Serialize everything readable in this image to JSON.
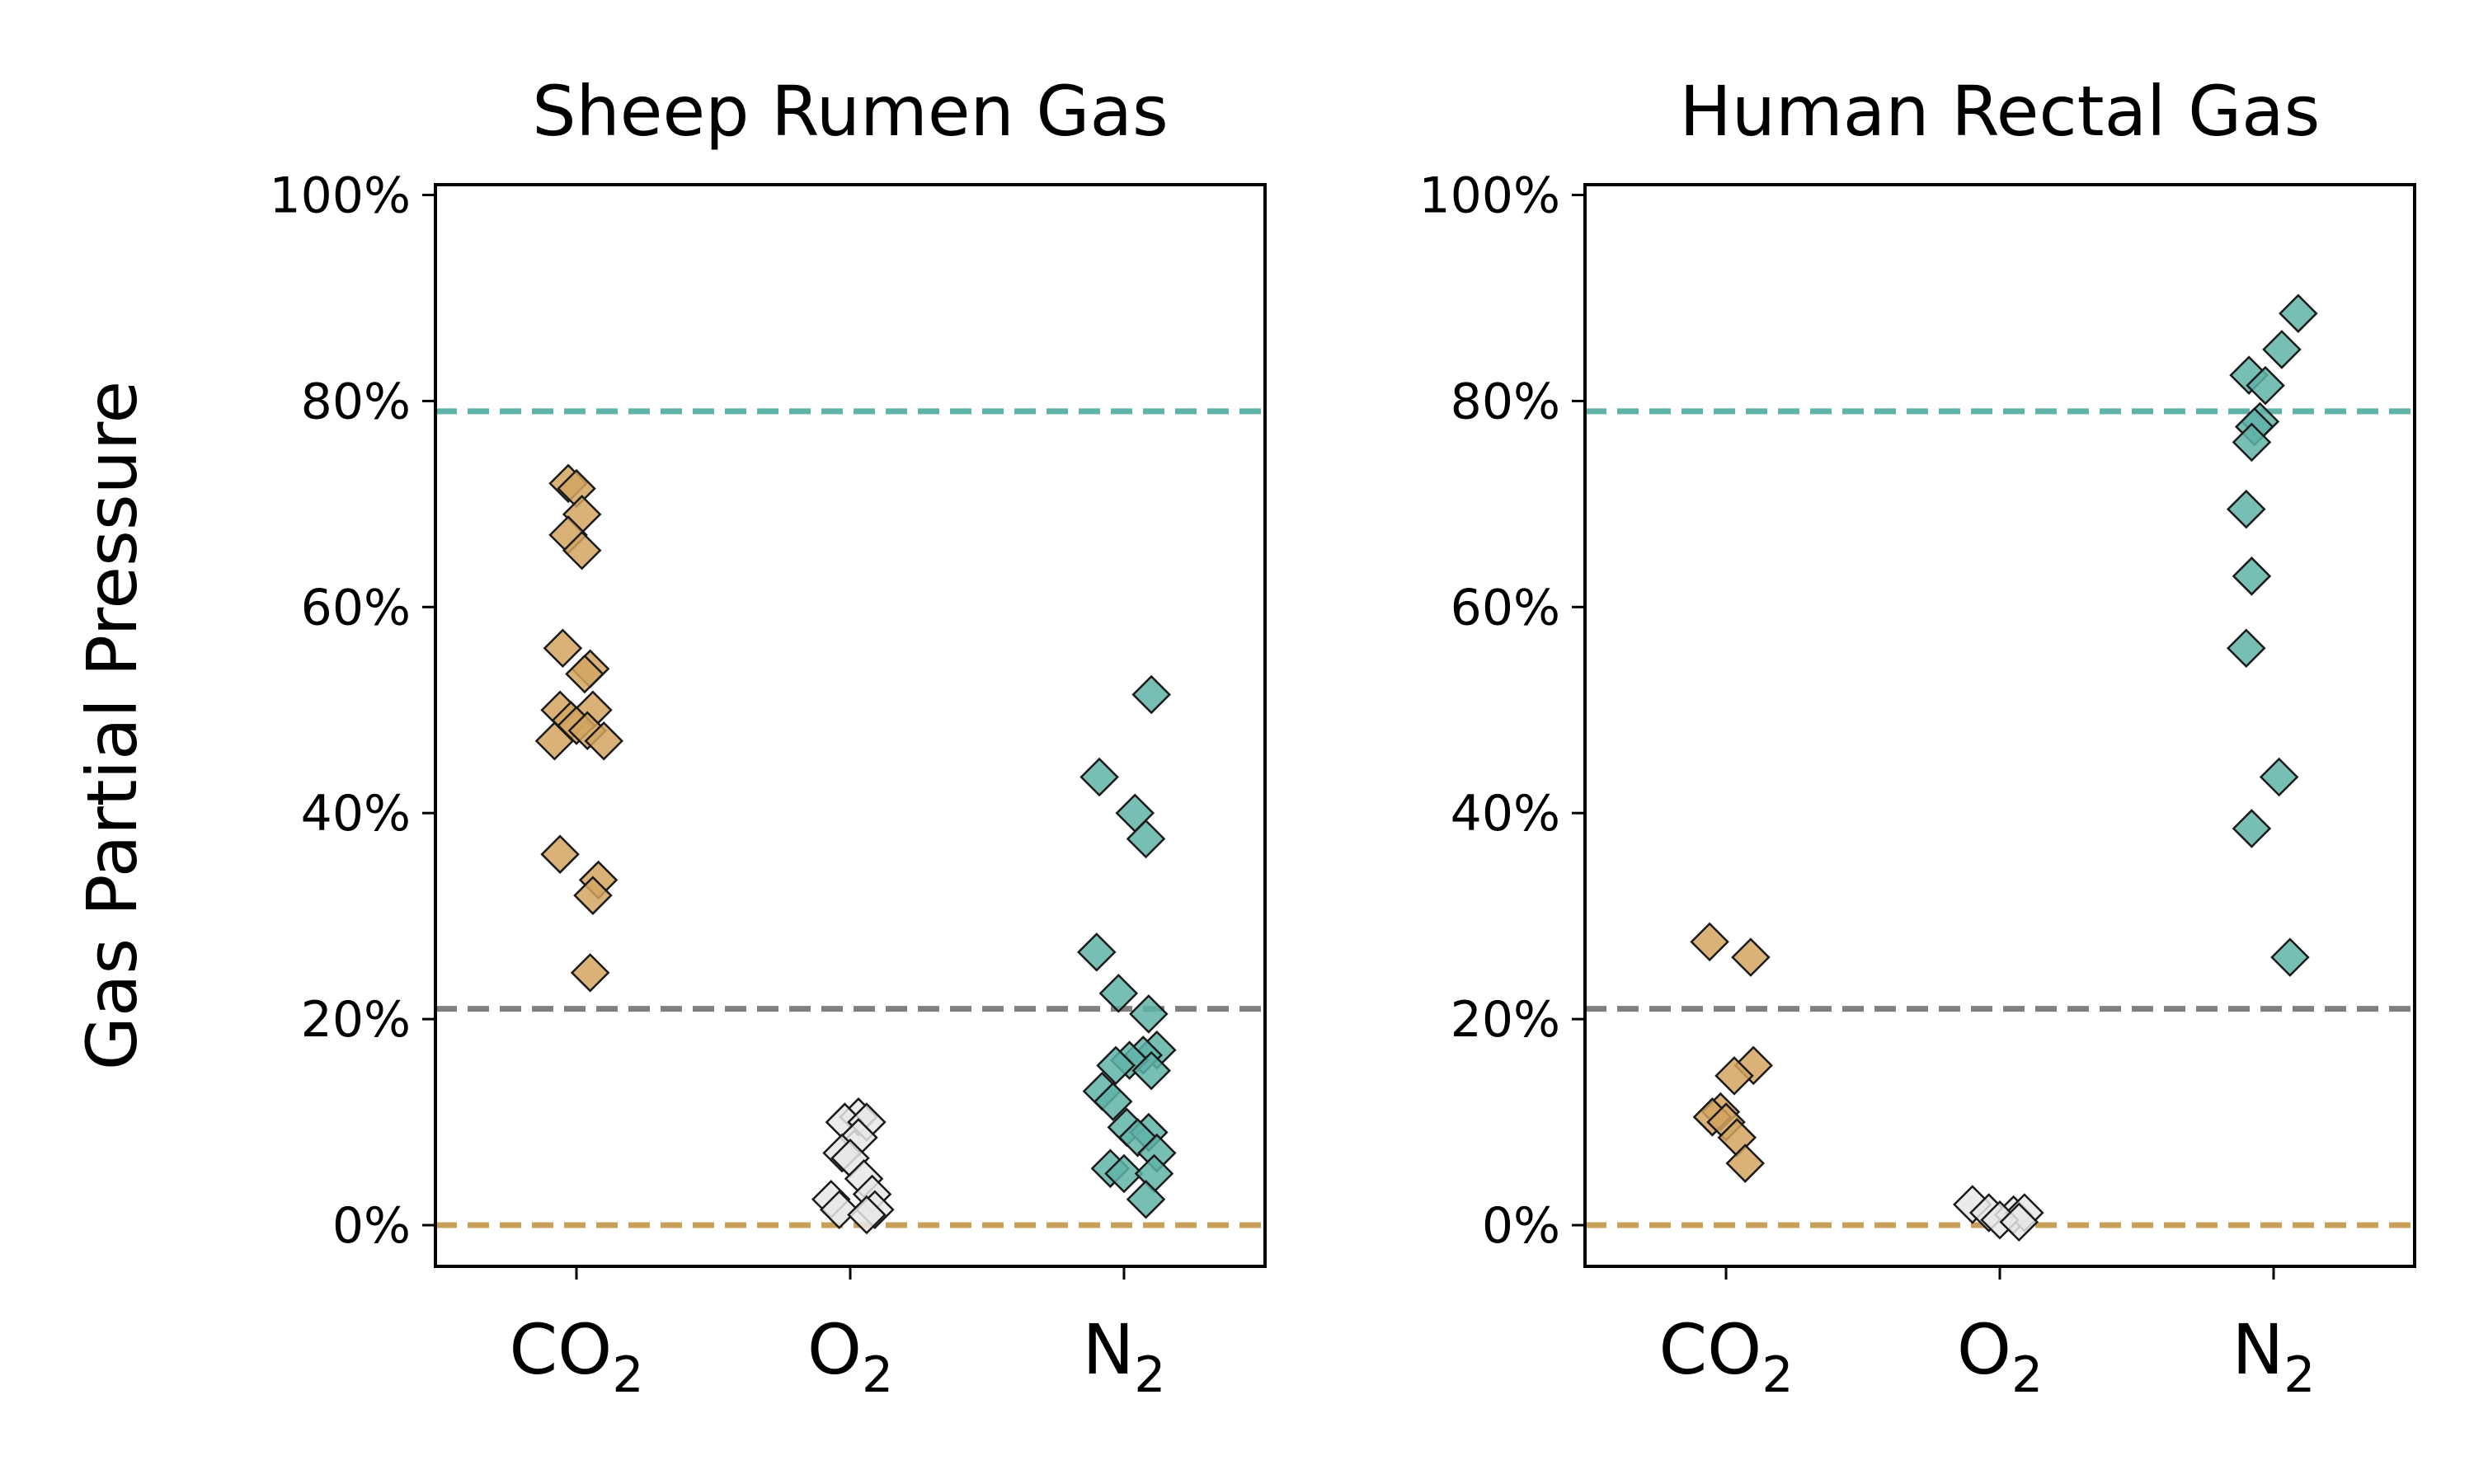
{
  "figure": {
    "ylabel": "Gas Partial Pressure"
  },
  "chart_data": [
    {
      "type": "scatter",
      "title": "Sheep Rumen Gas",
      "xlabel": "",
      "ylabel": "Gas Partial Pressure",
      "ylim": [
        -0.04,
        1.01
      ],
      "yticks": [
        0,
        0.2,
        0.4,
        0.6,
        0.8,
        1.0
      ],
      "ytick_labels": [
        "0%",
        "20%",
        "40%",
        "60%",
        "80%",
        "100%"
      ],
      "categories": [
        {
          "base": "CO",
          "sub": "2"
        },
        {
          "base": "O",
          "sub": "2"
        },
        {
          "base": "N",
          "sub": "2"
        }
      ],
      "reference_lines": [
        {
          "y": 0.79,
          "color": "#5fb3a8"
        },
        {
          "y": 0.21,
          "color": "#808080"
        },
        {
          "y": 0.0,
          "color": "#c8a05a"
        }
      ],
      "series": [
        {
          "color": "#d4a460",
          "category": 0,
          "points": [
            {
              "dx": -0.03,
              "y": 0.72
            },
            {
              "dx": 0.0,
              "y": 0.715
            },
            {
              "dx": 0.02,
              "y": 0.69
            },
            {
              "dx": -0.03,
              "y": 0.67
            },
            {
              "dx": 0.02,
              "y": 0.655
            },
            {
              "dx": -0.05,
              "y": 0.56
            },
            {
              "dx": 0.05,
              "y": 0.54
            },
            {
              "dx": 0.03,
              "y": 0.535
            },
            {
              "dx": -0.06,
              "y": 0.5
            },
            {
              "dx": 0.06,
              "y": 0.5
            },
            {
              "dx": -0.02,
              "y": 0.49
            },
            {
              "dx": 0.0,
              "y": 0.485
            },
            {
              "dx": 0.04,
              "y": 0.48
            },
            {
              "dx": -0.08,
              "y": 0.47
            },
            {
              "dx": 0.1,
              "y": 0.47
            },
            {
              "dx": -0.06,
              "y": 0.36
            },
            {
              "dx": 0.08,
              "y": 0.335
            },
            {
              "dx": 0.06,
              "y": 0.32
            },
            {
              "dx": 0.05,
              "y": 0.245
            }
          ]
        },
        {
          "color": "#e8e8e8",
          "category": 1,
          "points": [
            {
              "dx": 0.03,
              "y": 0.105
            },
            {
              "dx": -0.02,
              "y": 0.1
            },
            {
              "dx": 0.06,
              "y": 0.1
            },
            {
              "dx": 0.03,
              "y": 0.085
            },
            {
              "dx": -0.03,
              "y": 0.07
            },
            {
              "dx": 0.0,
              "y": 0.065
            },
            {
              "dx": 0.05,
              "y": 0.045
            },
            {
              "dx": 0.08,
              "y": 0.03
            },
            {
              "dx": -0.07,
              "y": 0.025
            },
            {
              "dx": -0.04,
              "y": 0.015
            },
            {
              "dx": 0.09,
              "y": 0.015
            },
            {
              "dx": 0.06,
              "y": 0.01
            }
          ]
        },
        {
          "color": "#5fb3a8",
          "category": 2,
          "points": [
            {
              "dx": 0.1,
              "y": 0.515
            },
            {
              "dx": -0.09,
              "y": 0.435
            },
            {
              "dx": 0.04,
              "y": 0.4
            },
            {
              "dx": 0.08,
              "y": 0.375
            },
            {
              "dx": -0.1,
              "y": 0.265
            },
            {
              "dx": -0.02,
              "y": 0.225
            },
            {
              "dx": 0.09,
              "y": 0.205
            },
            {
              "dx": 0.12,
              "y": 0.17
            },
            {
              "dx": 0.07,
              "y": 0.165
            },
            {
              "dx": 0.02,
              "y": 0.16
            },
            {
              "dx": -0.03,
              "y": 0.155
            },
            {
              "dx": 0.1,
              "y": 0.15
            },
            {
              "dx": -0.08,
              "y": 0.13
            },
            {
              "dx": -0.04,
              "y": 0.12
            },
            {
              "dx": 0.01,
              "y": 0.095
            },
            {
              "dx": 0.09,
              "y": 0.09
            },
            {
              "dx": 0.05,
              "y": 0.085
            },
            {
              "dx": 0.12,
              "y": 0.07
            },
            {
              "dx": -0.05,
              "y": 0.055
            },
            {
              "dx": 0.0,
              "y": 0.05
            },
            {
              "dx": 0.11,
              "y": 0.05
            },
            {
              "dx": 0.08,
              "y": 0.025
            }
          ]
        }
      ]
    },
    {
      "type": "scatter",
      "title": "Human Rectal Gas",
      "xlabel": "",
      "ylabel": "",
      "ylim": [
        -0.04,
        1.01
      ],
      "yticks": [
        0,
        0.2,
        0.4,
        0.6,
        0.8,
        1.0
      ],
      "ytick_labels": [
        "0%",
        "20%",
        "40%",
        "60%",
        "80%",
        "100%"
      ],
      "categories": [
        {
          "base": "CO",
          "sub": "2"
        },
        {
          "base": "O",
          "sub": "2"
        },
        {
          "base": "N",
          "sub": "2"
        }
      ],
      "reference_lines": [
        {
          "y": 0.79,
          "color": "#5fb3a8"
        },
        {
          "y": 0.21,
          "color": "#808080"
        },
        {
          "y": 0.0,
          "color": "#c8a05a"
        }
      ],
      "series": [
        {
          "color": "#d4a460",
          "category": 0,
          "points": [
            {
              "dx": -0.06,
              "y": 0.275
            },
            {
              "dx": 0.09,
              "y": 0.26
            },
            {
              "dx": 0.1,
              "y": 0.155
            },
            {
              "dx": 0.03,
              "y": 0.145
            },
            {
              "dx": -0.02,
              "y": 0.11
            },
            {
              "dx": -0.05,
              "y": 0.105
            },
            {
              "dx": 0.0,
              "y": 0.1
            },
            {
              "dx": 0.04,
              "y": 0.085
            },
            {
              "dx": 0.07,
              "y": 0.06
            }
          ]
        },
        {
          "color": "#e8e8e8",
          "category": 1,
          "points": [
            {
              "dx": -0.1,
              "y": 0.02
            },
            {
              "dx": -0.04,
              "y": 0.012
            },
            {
              "dx": 0.05,
              "y": 0.01
            },
            {
              "dx": 0.09,
              "y": 0.012
            },
            {
              "dx": 0.0,
              "y": 0.005
            },
            {
              "dx": 0.07,
              "y": 0.003
            }
          ]
        },
        {
          "color": "#5fb3a8",
          "category": 2,
          "points": [
            {
              "dx": 0.09,
              "y": 0.885
            },
            {
              "dx": 0.03,
              "y": 0.85
            },
            {
              "dx": -0.09,
              "y": 0.825
            },
            {
              "dx": -0.03,
              "y": 0.815
            },
            {
              "dx": -0.05,
              "y": 0.78
            },
            {
              "dx": -0.07,
              "y": 0.775
            },
            {
              "dx": -0.08,
              "y": 0.76
            },
            {
              "dx": -0.1,
              "y": 0.695
            },
            {
              "dx": -0.08,
              "y": 0.63
            },
            {
              "dx": -0.1,
              "y": 0.56
            },
            {
              "dx": 0.02,
              "y": 0.435
            },
            {
              "dx": -0.08,
              "y": 0.385
            },
            {
              "dx": 0.06,
              "y": 0.26
            }
          ]
        }
      ]
    }
  ]
}
